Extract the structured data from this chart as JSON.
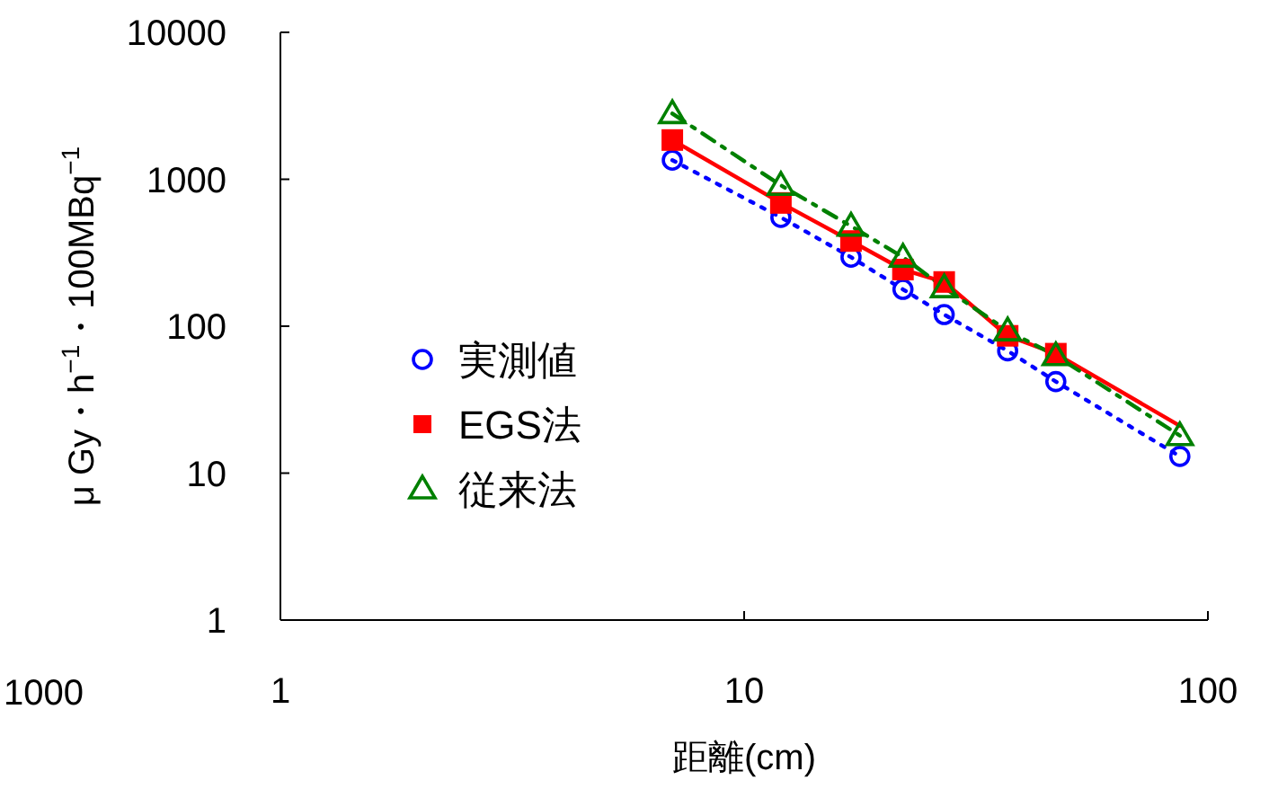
{
  "chart_data": {
    "type": "scatter",
    "xlabel": "距離(cm)",
    "ylabel": "μ Gy・h$^{−1}$・100MBq$^{−1}$",
    "log": "xy",
    "xlim": [
      1,
      100
    ],
    "ylim": [
      1,
      10000
    ],
    "xticks": [
      1,
      10,
      100
    ],
    "yticks": [
      1,
      10,
      100,
      1000,
      10000
    ],
    "grid": false,
    "legend": "center left",
    "annotations": [
      "1000"
    ],
    "series": [
      {
        "name": "実測値",
        "type": "scatter",
        "marker": "circle",
        "color": "#0000ff",
        "x": [
          7,
          12,
          17,
          22,
          27,
          37,
          47,
          87
        ],
        "values": [
          1350,
          550,
          295,
          178,
          120,
          68,
          42,
          13
        ]
      },
      {
        "name": "EGS法",
        "type": "scatter",
        "marker": "square",
        "color": "#ff0000",
        "x": [
          7,
          12,
          17,
          22,
          27,
          37,
          47
        ],
        "values": [
          1850,
          690,
          380,
          243,
          200,
          86,
          65
        ]
      },
      {
        "name": "従来法",
        "type": "scatter",
        "marker": "triangle",
        "color": "#008000",
        "x": [
          7,
          12,
          17,
          22,
          27,
          37,
          47,
          87
        ],
        "values": [
          2800,
          910,
          480,
          295,
          183,
          93,
          63,
          18
        ]
      },
      {
        "type": "line",
        "line_style": "dotted",
        "color": "#0000ff",
        "x": [
          7,
          12,
          17,
          22,
          27,
          37,
          47,
          87
        ],
        "values": [
          1350,
          550,
          295,
          178,
          120,
          68,
          42,
          13
        ]
      },
      {
        "type": "line",
        "line_style": "solid",
        "color": "#ff0000",
        "x": [
          7,
          12,
          17,
          22,
          27,
          37,
          47,
          87
        ],
        "values": [
          1850,
          690,
          380,
          243,
          200,
          86,
          65,
          21
        ]
      },
      {
        "type": "line",
        "line_style": "dashed",
        "color": "#008000",
        "x": [
          7,
          12,
          17,
          22,
          27,
          37,
          47,
          87
        ],
        "values": [
          2800,
          910,
          480,
          295,
          183,
          93,
          63,
          18
        ]
      }
    ]
  }
}
